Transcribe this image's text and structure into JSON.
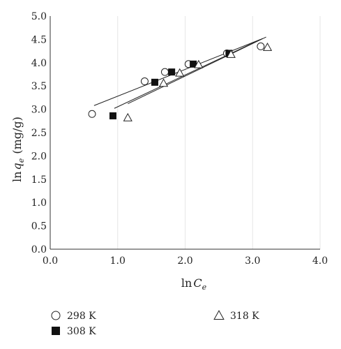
{
  "chart_data": {
    "type": "scatter",
    "title": "",
    "xlabel": {
      "prefix": "ln",
      "var": "C",
      "sub": "e",
      "unit": ""
    },
    "ylabel": {
      "prefix": "ln",
      "var": "q",
      "sub": "e",
      "unit": "(mg/g)"
    },
    "xlim": [
      0,
      4
    ],
    "ylim": [
      0,
      5
    ],
    "xticks": [
      0,
      1,
      2,
      3,
      4
    ],
    "yticks": [
      0,
      0.5,
      1,
      1.5,
      2,
      2.5,
      3,
      3.5,
      4,
      4.5,
      5
    ],
    "xtick_labels": [
      "0.0",
      "1.0",
      "2.0",
      "3.0",
      "4.0"
    ],
    "ytick_labels": [
      "0.0",
      "0.5",
      "1.0",
      "1.5",
      "2.0",
      "2.5",
      "3.0",
      "3.5",
      "4.0",
      "4.5",
      "5.0"
    ],
    "grid": "vertical-major",
    "legend_position": "bottom",
    "series": [
      {
        "name": "298 K",
        "marker": "circle",
        "x": [
          0.62,
          1.4,
          1.7,
          2.05,
          2.62,
          3.12
        ],
        "y": [
          2.9,
          3.6,
          3.8,
          3.97,
          4.2,
          4.35
        ],
        "fit": {
          "x": [
            0.65,
            3.12
          ],
          "y": [
            3.08,
            4.5
          ]
        }
      },
      {
        "name": "308 K",
        "marker": "square",
        "x": [
          0.93,
          1.55,
          1.8,
          2.12,
          2.65
        ],
        "y": [
          2.86,
          3.58,
          3.8,
          3.97,
          4.2
        ],
        "fit": {
          "x": [
            0.95,
            3.15
          ],
          "y": [
            3.02,
            4.52
          ]
        }
      },
      {
        "name": "318 K",
        "marker": "triangle",
        "x": [
          1.15,
          1.68,
          1.92,
          2.2,
          2.68,
          3.22
        ],
        "y": [
          2.82,
          3.56,
          3.78,
          3.96,
          4.18,
          4.33
        ],
        "fit": {
          "x": [
            1.15,
            3.2
          ],
          "y": [
            3.12,
            4.55
          ]
        }
      }
    ]
  }
}
